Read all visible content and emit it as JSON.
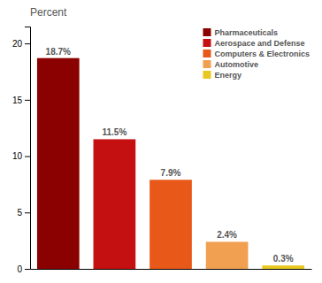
{
  "chart_data": {
    "type": "bar",
    "ylabel": "Percent",
    "categories": [
      "Pharmaceuticals",
      "Aerospace and Defense",
      "Computers & Electronics",
      "Automotive",
      "Energy"
    ],
    "values": [
      18.7,
      11.5,
      7.9,
      2.4,
      0.3
    ],
    "value_labels": [
      "18.7%",
      "11.5%",
      "7.9%",
      "2.4%",
      "0.3%"
    ],
    "colors": [
      "#8B0000",
      "#C41010",
      "#E85818",
      "#F0A050",
      "#E8C820"
    ],
    "ylim": [
      0,
      21.5
    ],
    "yticks": [
      0,
      5,
      10,
      15,
      20
    ],
    "data_labels": true,
    "legend": "upper right",
    "grid": false,
    "tick_labels": "y"
  }
}
